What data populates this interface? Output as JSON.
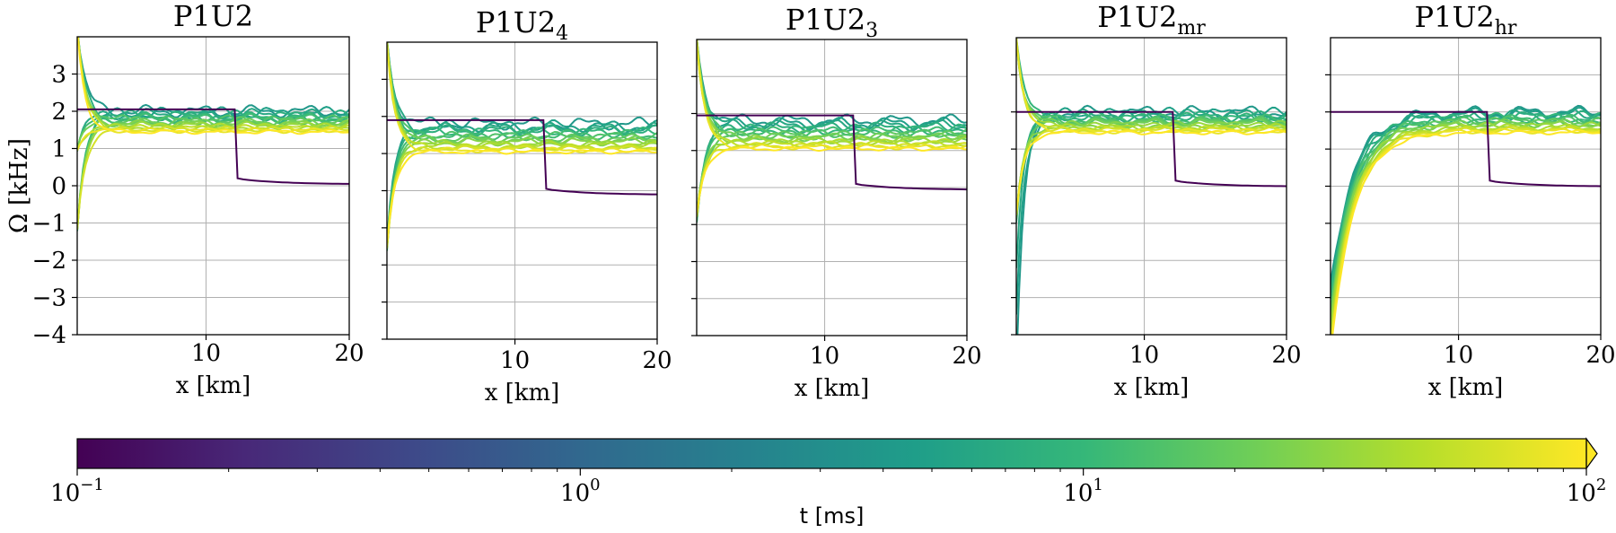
{
  "chart_data": {
    "type": "line",
    "ylabel": "Ω [kHz]",
    "colorbar": {
      "label": "t [ms]",
      "scale": "log",
      "range": [
        0.1,
        100
      ],
      "extend": "max",
      "ticks": [
        {
          "base": "10",
          "exp": "−1"
        },
        {
          "base": "10",
          "exp": "0"
        },
        {
          "base": "10",
          "exp": "1"
        },
        {
          "base": "10",
          "exp": "2"
        }
      ],
      "colormap": [
        "#440154",
        "#482878",
        "#3e4989",
        "#31688e",
        "#26828e",
        "#1f9e89",
        "#35b779",
        "#6ece58",
        "#b5de2b",
        "#fde725"
      ]
    },
    "panels": [
      {
        "title_main": "P1U2",
        "title_sub": "",
        "xlabel": "x [km]",
        "xlim": [
          1,
          20
        ],
        "ylim": [
          -4,
          4
        ],
        "xticks": [
          "10",
          "20"
        ],
        "yticks": [
          "−4",
          "−3",
          "−2",
          "−1",
          "0",
          "1",
          "2",
          "3"
        ],
        "initial_plateau": 2.05,
        "initial_outer": [
          0.2,
          0.05
        ]
      },
      {
        "title_main": "P1U2",
        "title_sub": "4",
        "xlabel": "x [km]",
        "xlim": [
          1,
          20
        ],
        "ylim": [
          -4,
          4
        ],
        "xticks": [
          "10",
          "20"
        ],
        "yticks": [],
        "initial_plateau": 1.9,
        "initial_outer": [
          0.05,
          -0.1
        ]
      },
      {
        "title_main": "P1U2",
        "title_sub": "3",
        "xlabel": "x [km]",
        "xlim": [
          1,
          20
        ],
        "ylim": [
          -4,
          4
        ],
        "xticks": [
          "10",
          "20"
        ],
        "yticks": [],
        "initial_plateau": 1.95,
        "initial_outer": [
          0.1,
          -0.05
        ]
      },
      {
        "title_main": "P1U2",
        "title_sub": "mr",
        "xlabel": "x [km]",
        "xlim": [
          1,
          20
        ],
        "ylim": [
          -4,
          4
        ],
        "xticks": [
          "10",
          "20"
        ],
        "yticks": [],
        "initial_plateau": 2.0,
        "initial_outer": [
          0.15,
          0.0
        ]
      },
      {
        "title_main": "P1U2",
        "title_sub": "hr",
        "xlabel": "x [km]",
        "xlim": [
          1,
          20
        ],
        "ylim": [
          -4,
          4
        ],
        "xticks": [
          "10",
          "20"
        ],
        "yticks": [],
        "initial_plateau": 2.0,
        "initial_outer": [
          0.15,
          0.0
        ]
      }
    ]
  }
}
